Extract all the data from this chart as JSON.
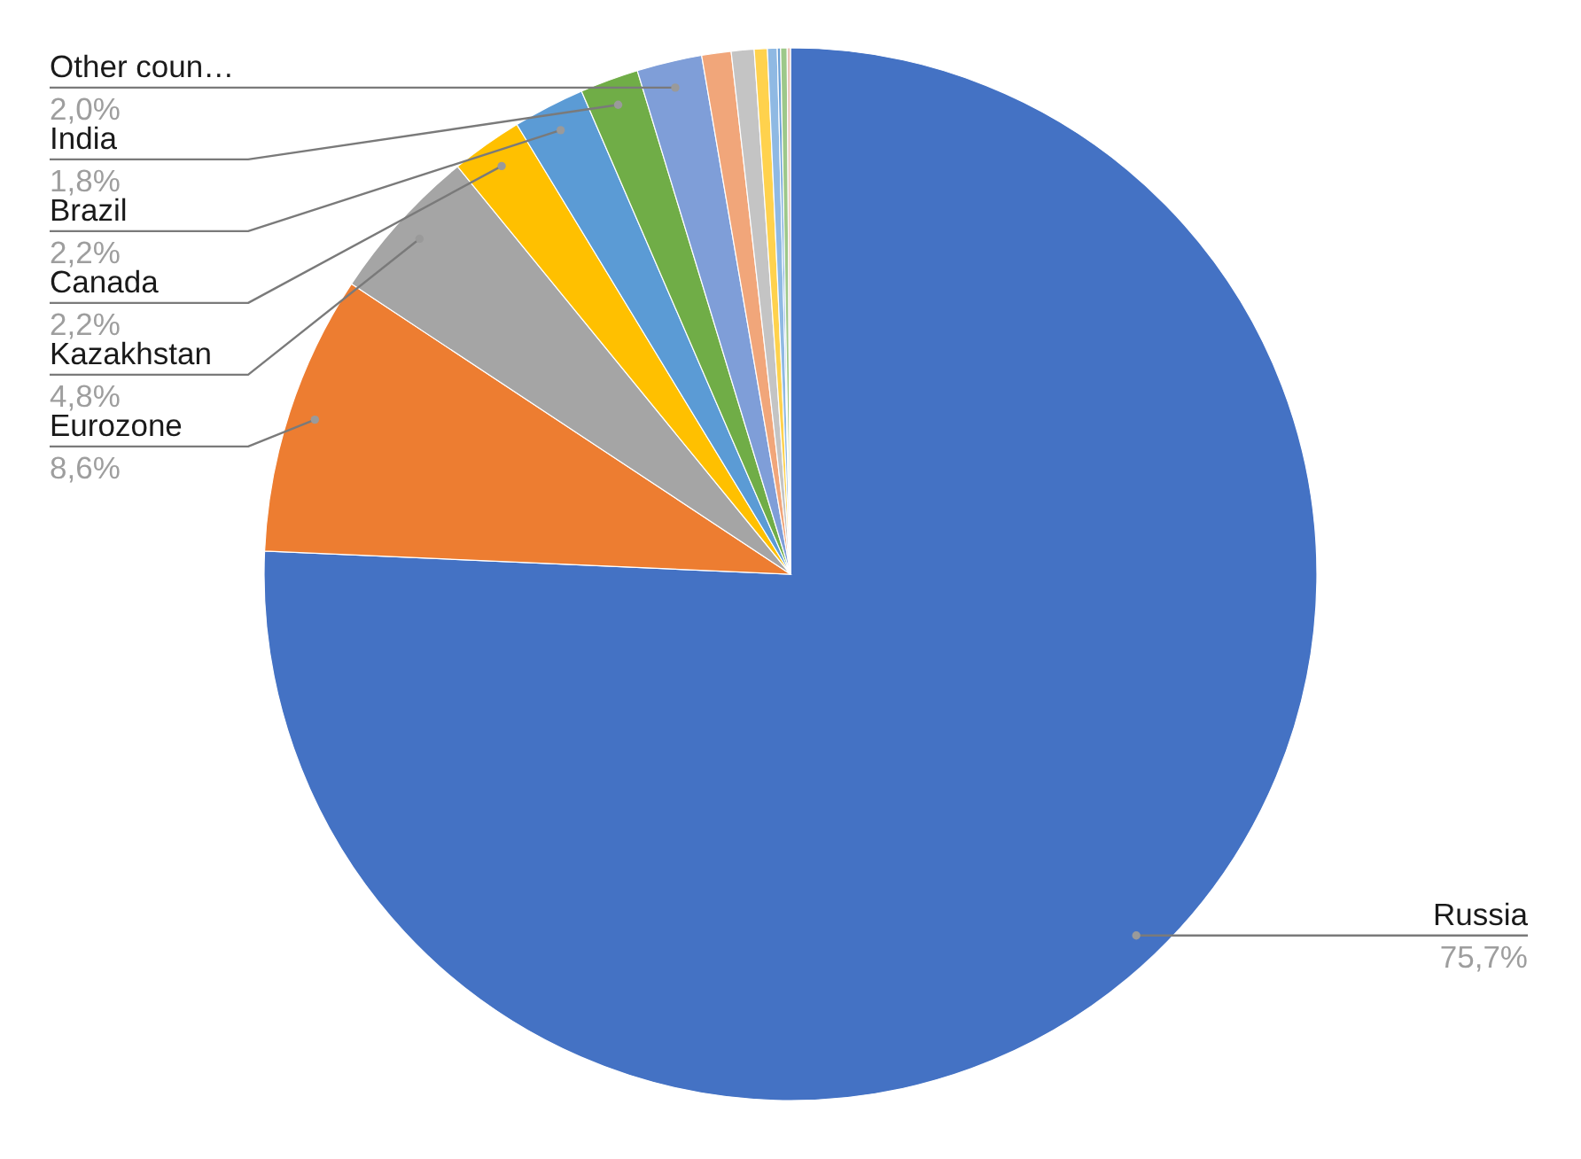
{
  "chart_data": {
    "type": "pie",
    "categories": [
      "Russia",
      "Eurozone",
      "Kazakhstan",
      "Canada",
      "Brazil",
      "India",
      "Other coun…",
      null,
      null,
      null,
      null,
      null,
      null,
      null
    ],
    "values": [
      75.7,
      8.6,
      4.8,
      2.2,
      2.2,
      1.8,
      2.0,
      0.9,
      0.7,
      0.4,
      0.3,
      0.1,
      0.2,
      0.1
    ],
    "value_labels": [
      "75,7%",
      "8,6%",
      "4,8%",
      "2,2%",
      "2,2%",
      "1,8%",
      "2,0%",
      null,
      null,
      null,
      null,
      null,
      null,
      null
    ],
    "colors": [
      "#4472c4",
      "#ed7d31",
      "#a5a5a5",
      "#ffc000",
      "#5b9bd5",
      "#70ad47",
      "#7f9ed8",
      "#f1a67a",
      "#c4c4c4",
      "#ffd24d",
      "#8fb9e3",
      "#6a9fd6",
      "#9dc88a",
      "#eac4b8"
    ]
  }
}
